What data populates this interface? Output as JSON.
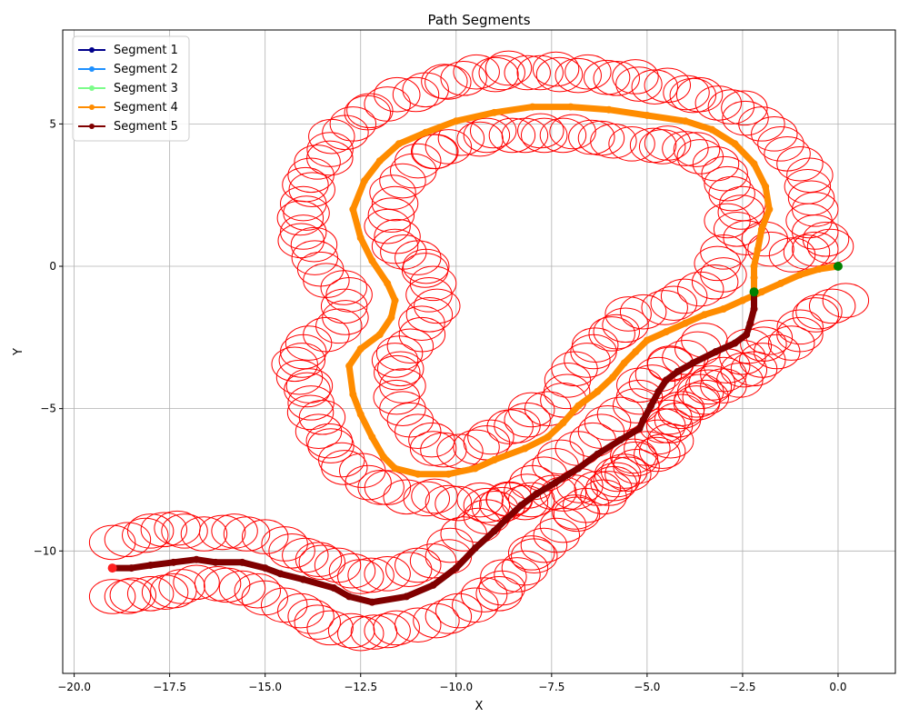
{
  "chart_data": {
    "type": "line",
    "title": "Path Segments",
    "xlabel": "X",
    "ylabel": "Y",
    "xlim": [
      -20.3,
      1.5
    ],
    "ylim": [
      -14.3,
      8.3
    ],
    "xticks": [
      -20.0,
      -17.5,
      -15.0,
      -12.5,
      -10.0,
      -7.5,
      -5.0,
      -2.5,
      0.0
    ],
    "xtick_labels": [
      "−20.0",
      "−17.5",
      "−15.0",
      "−12.5",
      "−10.0",
      "−7.5",
      "−5.0",
      "−2.5",
      "0.0"
    ],
    "yticks": [
      -10,
      -5,
      0,
      5
    ],
    "ytick_labels": [
      "−10",
      "−5",
      "0",
      "5"
    ],
    "grid": true,
    "legend_position": "top-left",
    "legend": [
      {
        "name": "Segment 1",
        "color": "#00008b"
      },
      {
        "name": "Segment 2",
        "color": "#1e90ff"
      },
      {
        "name": "Segment 3",
        "color": "#7cfc8a"
      },
      {
        "name": "Segment 4",
        "color": "#ff8c00"
      },
      {
        "name": "Segment 5",
        "color": "#800000"
      }
    ],
    "series": [
      {
        "name": "Segment 4",
        "color": "#ff8c00",
        "points": [
          [
            0.0,
            0.0
          ],
          [
            -0.5,
            -0.1
          ],
          [
            -1.0,
            -0.3
          ],
          [
            -1.5,
            -0.6
          ],
          [
            -2.0,
            -0.9
          ],
          [
            -2.5,
            -1.2
          ],
          [
            -3.0,
            -1.5
          ],
          [
            -3.5,
            -1.7
          ],
          [
            -4.0,
            -2.0
          ],
          [
            -4.5,
            -2.3
          ],
          [
            -5.0,
            -2.6
          ],
          [
            -5.3,
            -3.0
          ],
          [
            -5.6,
            -3.4
          ],
          [
            -5.9,
            -3.9
          ],
          [
            -6.3,
            -4.4
          ],
          [
            -6.8,
            -4.9
          ],
          [
            -7.2,
            -5.5
          ],
          [
            -7.6,
            -6.0
          ],
          [
            -8.2,
            -6.4
          ],
          [
            -9.0,
            -6.8
          ],
          [
            -9.5,
            -7.1
          ],
          [
            -10.2,
            -7.3
          ],
          [
            -11.0,
            -7.3
          ],
          [
            -11.6,
            -7.1
          ],
          [
            -11.9,
            -6.7
          ],
          [
            -12.2,
            -6.0
          ],
          [
            -12.5,
            -5.2
          ],
          [
            -12.7,
            -4.5
          ],
          [
            -12.8,
            -3.5
          ],
          [
            -12.5,
            -2.9
          ],
          [
            -12.0,
            -2.4
          ],
          [
            -11.7,
            -1.8
          ],
          [
            -11.6,
            -1.2
          ],
          [
            -11.8,
            -0.6
          ],
          [
            -12.2,
            0.2
          ],
          [
            -12.5,
            1.0
          ],
          [
            -12.7,
            2.0
          ],
          [
            -12.4,
            3.0
          ],
          [
            -12.0,
            3.7
          ],
          [
            -11.5,
            4.3
          ],
          [
            -10.8,
            4.7
          ],
          [
            -10.0,
            5.1
          ],
          [
            -9.0,
            5.4
          ],
          [
            -8.0,
            5.6
          ],
          [
            -7.0,
            5.6
          ],
          [
            -6.0,
            5.5
          ],
          [
            -5.0,
            5.3
          ],
          [
            -4.0,
            5.1
          ],
          [
            -3.3,
            4.8
          ],
          [
            -2.7,
            4.3
          ],
          [
            -2.2,
            3.6
          ],
          [
            -1.9,
            2.8
          ],
          [
            -1.8,
            2.0
          ],
          [
            -2.0,
            1.3
          ],
          [
            -2.1,
            0.6
          ],
          [
            -2.2,
            0.0
          ],
          [
            -2.2,
            -0.4
          ],
          [
            -2.2,
            -0.9
          ]
        ]
      },
      {
        "name": "Segment 5",
        "color": "#800000",
        "points": [
          [
            -2.2,
            -0.9
          ],
          [
            -2.2,
            -1.5
          ],
          [
            -2.3,
            -2.0
          ],
          [
            -2.4,
            -2.4
          ],
          [
            -2.7,
            -2.7
          ],
          [
            -3.2,
            -3.0
          ],
          [
            -3.8,
            -3.4
          ],
          [
            -4.2,
            -3.7
          ],
          [
            -4.5,
            -4.0
          ],
          [
            -4.7,
            -4.4
          ],
          [
            -4.9,
            -4.9
          ],
          [
            -5.1,
            -5.4
          ],
          [
            -5.2,
            -5.7
          ],
          [
            -5.7,
            -6.1
          ],
          [
            -6.3,
            -6.6
          ],
          [
            -6.8,
            -7.1
          ],
          [
            -7.4,
            -7.6
          ],
          [
            -7.9,
            -8.0
          ],
          [
            -8.3,
            -8.4
          ],
          [
            -8.7,
            -8.9
          ],
          [
            -9.0,
            -9.3
          ],
          [
            -9.5,
            -9.9
          ],
          [
            -10.0,
            -10.6
          ],
          [
            -10.6,
            -11.2
          ],
          [
            -11.3,
            -11.6
          ],
          [
            -12.2,
            -11.8
          ],
          [
            -12.8,
            -11.6
          ],
          [
            -13.2,
            -11.3
          ],
          [
            -14.0,
            -11.0
          ],
          [
            -14.6,
            -10.8
          ],
          [
            -15.0,
            -10.6
          ],
          [
            -15.6,
            -10.4
          ],
          [
            -16.3,
            -10.4
          ],
          [
            -16.8,
            -10.3
          ],
          [
            -17.4,
            -10.4
          ],
          [
            -18.0,
            -10.5
          ],
          [
            -18.5,
            -10.6
          ],
          [
            -19.0,
            -10.6
          ]
        ]
      }
    ],
    "markers": [
      {
        "name": "start",
        "x": 0.0,
        "y": 0.0,
        "color": "#008000"
      },
      {
        "name": "junction",
        "x": -2.2,
        "y": -0.9,
        "color": "#008000"
      },
      {
        "name": "end",
        "x": -19.0,
        "y": -10.6,
        "color": "#ff2020"
      }
    ],
    "circle_color": "#ff0000",
    "circle_radius": 0.6,
    "obstacle_chains": [
      [
        [
          -0.2,
          0.7
        ],
        [
          -0.6,
          1.2
        ],
        [
          -0.6,
          2.0
        ],
        [
          -0.8,
          2.8
        ],
        [
          -1.0,
          3.6
        ],
        [
          -1.5,
          4.3
        ],
        [
          -2.0,
          5.0
        ],
        [
          -2.8,
          5.6
        ],
        [
          -3.8,
          6.0
        ],
        [
          -4.8,
          6.3
        ],
        [
          -5.8,
          6.6
        ],
        [
          -6.8,
          6.7
        ],
        [
          -7.8,
          6.8
        ],
        [
          -8.8,
          6.8
        ],
        [
          -9.8,
          6.6
        ],
        [
          -10.8,
          6.2
        ],
        [
          -11.8,
          5.7
        ],
        [
          -12.7,
          5.0
        ],
        [
          -13.3,
          4.1
        ],
        [
          -13.8,
          3.2
        ],
        [
          -14.0,
          2.2
        ],
        [
          -14.0,
          1.2
        ],
        [
          -13.7,
          0.3
        ],
        [
          -13.4,
          -0.5
        ],
        [
          -12.8,
          -1.0
        ],
        [
          -12.9,
          -1.8
        ],
        [
          -13.4,
          -2.4
        ],
        [
          -14.0,
          -3.0
        ],
        [
          -14.1,
          -3.9
        ],
        [
          -13.8,
          -4.8
        ],
        [
          -13.6,
          -5.8
        ],
        [
          -13.0,
          -6.8
        ],
        [
          -12.3,
          -7.6
        ],
        [
          -11.3,
          -8.1
        ],
        [
          -10.2,
          -8.3
        ],
        [
          -9.2,
          -8.4
        ],
        [
          -8.2,
          -8.3
        ],
        [
          -7.2,
          -8.0
        ],
        [
          -6.3,
          -7.8
        ],
        [
          -5.5,
          -7.3
        ],
        [
          -4.6,
          -6.5
        ],
        [
          -4.2,
          -5.4
        ],
        [
          -3.7,
          -4.8
        ],
        [
          -3.0,
          -4.2
        ],
        [
          -2.2,
          -3.6
        ],
        [
          -1.6,
          -3.0
        ],
        [
          -1.0,
          -2.4
        ],
        [
          -0.5,
          -1.6
        ],
        [
          0.2,
          -1.2
        ]
      ],
      [
        [
          -0.6,
          0.6
        ],
        [
          -1.2,
          0.4
        ],
        [
          -2.4,
          1.0
        ],
        [
          -2.9,
          1.6
        ],
        [
          -2.5,
          2.2
        ],
        [
          -2.9,
          2.9
        ],
        [
          -3.2,
          3.6
        ],
        [
          -3.7,
          4.1
        ],
        [
          -4.6,
          4.2
        ],
        [
          -5.4,
          4.3
        ],
        [
          -6.2,
          4.5
        ],
        [
          -7.2,
          4.6
        ],
        [
          -8.2,
          4.6
        ],
        [
          -9.2,
          4.6
        ],
        [
          -10.2,
          4.2
        ],
        [
          -11.0,
          3.7
        ],
        [
          -11.4,
          3.0
        ],
        [
          -11.6,
          2.2
        ],
        [
          -11.8,
          1.4
        ],
        [
          -11.6,
          0.7
        ],
        [
          -11.0,
          0.3
        ],
        [
          -10.6,
          -0.6
        ],
        [
          -10.5,
          -1.4
        ],
        [
          -10.9,
          -2.0
        ],
        [
          -11.2,
          -2.8
        ],
        [
          -11.6,
          -3.3
        ],
        [
          -11.4,
          -4.2
        ],
        [
          -11.4,
          -5.0
        ],
        [
          -11.0,
          -5.8
        ],
        [
          -10.6,
          -6.4
        ],
        [
          -9.9,
          -6.5
        ],
        [
          -9.2,
          -6.2
        ],
        [
          -8.4,
          -5.6
        ],
        [
          -7.6,
          -5.0
        ],
        [
          -7.1,
          -4.4
        ],
        [
          -6.9,
          -3.6
        ],
        [
          -6.4,
          -3.0
        ],
        [
          -5.8,
          -2.3
        ],
        [
          -5.1,
          -1.6
        ],
        [
          -4.3,
          -1.3
        ],
        [
          -3.6,
          -0.8
        ],
        [
          -3.0,
          -0.3
        ],
        [
          -3.0,
          0.5
        ]
      ],
      [
        [
          -3.5,
          -2.6
        ],
        [
          -4.0,
          -3.2
        ],
        [
          -4.7,
          -3.8
        ],
        [
          -5.2,
          -4.6
        ],
        [
          -5.7,
          -5.2
        ],
        [
          -6.2,
          -5.8
        ],
        [
          -6.8,
          -6.4
        ],
        [
          -7.4,
          -7.0
        ],
        [
          -8.0,
          -7.6
        ],
        [
          -8.6,
          -8.2
        ],
        [
          -9.2,
          -8.8
        ],
        [
          -9.8,
          -9.4
        ],
        [
          -10.2,
          -10.2
        ],
        [
          -11.0,
          -10.5
        ],
        [
          -11.8,
          -10.8
        ],
        [
          -12.5,
          -10.9
        ],
        [
          -13.1,
          -10.5
        ],
        [
          -13.6,
          -10.3
        ],
        [
          -14.3,
          -10.0
        ],
        [
          -15.0,
          -9.5
        ],
        [
          -15.8,
          -9.3
        ],
        [
          -16.6,
          -9.4
        ],
        [
          -17.3,
          -9.2
        ],
        [
          -18.0,
          -9.3
        ],
        [
          -18.6,
          -9.6
        ],
        [
          -19.0,
          -9.7
        ]
      ],
      [
        [
          -1.8,
          -2.5
        ],
        [
          -2.5,
          -3.2
        ],
        [
          -3.0,
          -3.8
        ],
        [
          -3.6,
          -4.4
        ],
        [
          -4.1,
          -5.0
        ],
        [
          -4.6,
          -5.6
        ],
        [
          -5.0,
          -6.4
        ],
        [
          -5.6,
          -7.2
        ],
        [
          -6.0,
          -7.8
        ],
        [
          -6.6,
          -8.4
        ],
        [
          -7.2,
          -9.1
        ],
        [
          -7.7,
          -9.8
        ],
        [
          -8.2,
          -10.6
        ],
        [
          -8.8,
          -11.3
        ],
        [
          -9.5,
          -11.9
        ],
        [
          -10.2,
          -12.3
        ],
        [
          -11.0,
          -12.6
        ],
        [
          -11.8,
          -12.8
        ],
        [
          -12.5,
          -12.9
        ],
        [
          -13.3,
          -12.7
        ],
        [
          -13.8,
          -12.3
        ],
        [
          -14.5,
          -11.9
        ],
        [
          -15.2,
          -11.4
        ],
        [
          -16.0,
          -11.2
        ],
        [
          -16.8,
          -11.1
        ],
        [
          -17.4,
          -11.4
        ],
        [
          -18.0,
          -11.5
        ],
        [
          -18.6,
          -11.6
        ],
        [
          -19.0,
          -11.6
        ]
      ]
    ]
  }
}
